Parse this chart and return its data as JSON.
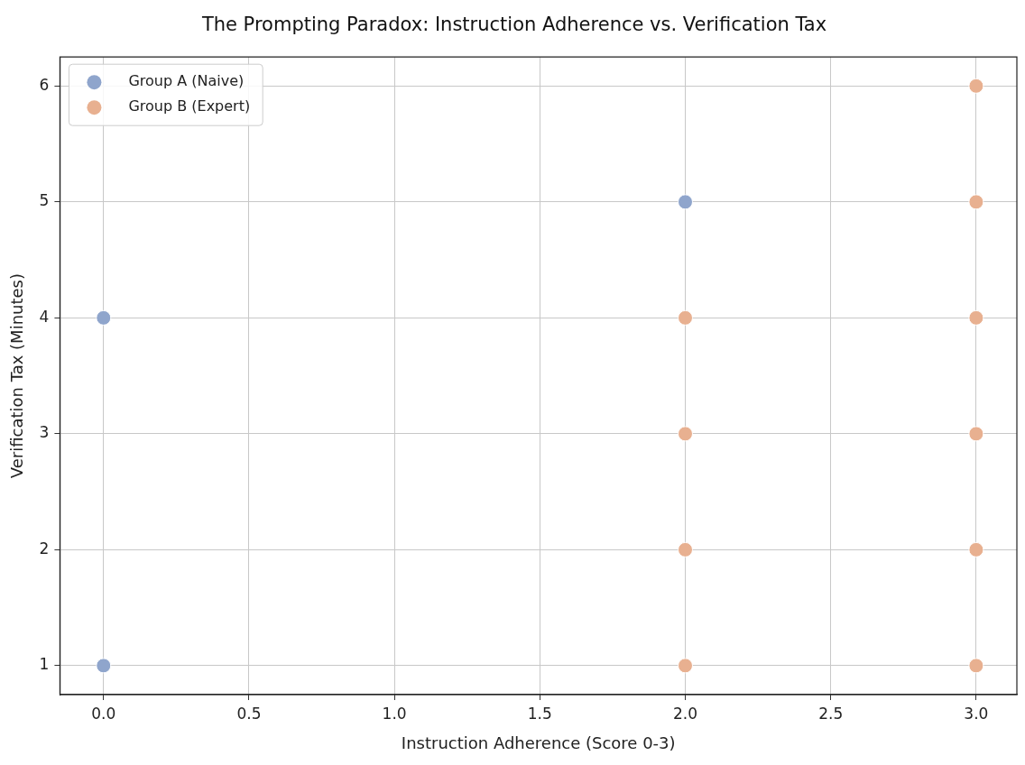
{
  "chart_data": {
    "type": "scatter",
    "title": "The Prompting Paradox: Instruction Adherence vs. Verification Tax",
    "xlabel": "Instruction Adherence (Score 0-3)",
    "ylabel": "Verification Tax (Minutes)",
    "series": [
      {
        "name": "Group A (Naive)",
        "color": "#8fa5cc",
        "x": [
          0,
          0,
          2
        ],
        "values": [
          4,
          1,
          5
        ]
      },
      {
        "name": "Group B (Expert)",
        "color": "#e8b090",
        "x": [
          2,
          2,
          2,
          2,
          3,
          3,
          3,
          3,
          3,
          3
        ],
        "values": [
          4,
          3,
          2,
          1,
          6,
          5,
          4,
          3,
          2,
          1
        ]
      }
    ],
    "xlim": [
      -0.15,
      3.14
    ],
    "xticks": [
      {
        "value": 0,
        "label": "0.0"
      },
      {
        "value": 0.5,
        "label": "0.5"
      },
      {
        "value": 1,
        "label": "1.0"
      },
      {
        "value": 1.5,
        "label": "1.5"
      },
      {
        "value": 2,
        "label": "2.0"
      },
      {
        "value": 2.5,
        "label": "2.5"
      },
      {
        "value": 3,
        "label": "3.0"
      }
    ],
    "ylim": [
      0.75,
      6.25
    ],
    "yticks": [
      1,
      2,
      3,
      4,
      5,
      6
    ],
    "grid": true,
    "legend": "top left",
    "marker": "circle"
  }
}
